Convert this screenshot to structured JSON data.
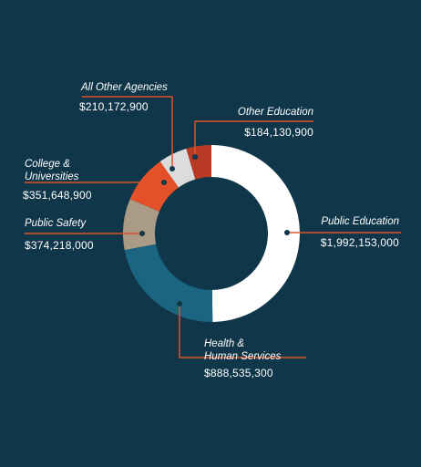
{
  "chart_data": {
    "type": "pie",
    "donut": true,
    "categories": [
      "Public Education",
      "Health & Human Services",
      "Public Safety",
      "College & Universities",
      "All Other Agencies",
      "Other Education"
    ],
    "values": [
      1992153000,
      888535300,
      374218000,
      351648900,
      210172900,
      184130900
    ],
    "value_labels": [
      "$1,992,153,000",
      "$888,535,300",
      "$374,218,000",
      "$351,648,900",
      "$210,172,900",
      "$184,130,900"
    ],
    "colors": [
      "#ffffff",
      "#1b6482",
      "#a99b85",
      "#e45128",
      "#dcdcdc",
      "#b83a25"
    ],
    "leader_color": "#e0512a",
    "background": "#0f3649",
    "legend": "none"
  },
  "labels": [
    {
      "name": "Public Education",
      "value": "$1,992,153,000"
    },
    {
      "name": "Health &\nHuman Services",
      "value": "$888,535,300"
    },
    {
      "name": "Public Safety",
      "value": "$374,218,000"
    },
    {
      "name": "College &\nUniversities",
      "value": "$351,648,900"
    },
    {
      "name": "All Other Agencies",
      "value": "$210,172,900"
    },
    {
      "name": "Other Education",
      "value": "$184,130,900"
    }
  ]
}
